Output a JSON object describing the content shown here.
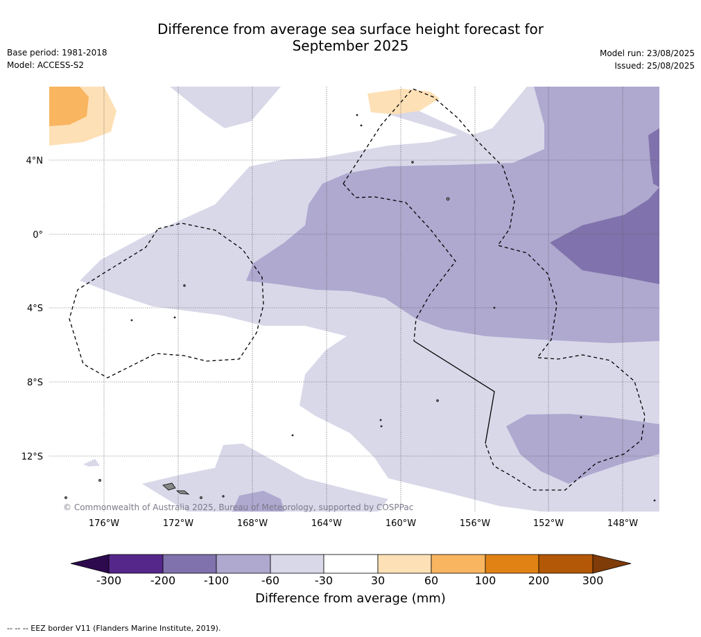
{
  "header": {
    "title_line1": "Difference from average sea surface height forecast for",
    "title_line2": "September 2025",
    "base_period": "Base period: 1981-2018",
    "model": "Model: ACCESS-S2",
    "model_run": "Model run: 23/08/2025",
    "issued": "Issued: 25/08/2025"
  },
  "map": {
    "copyright": "© Commonwealth of Australia 2025, Bureau of Meteorology, supported by COSPPac",
    "lat_labels": [
      "4°N",
      "0°",
      "4°S",
      "8°S",
      "12°S"
    ],
    "lon_labels": [
      "176°W",
      "172°W",
      "168°W",
      "164°W",
      "160°W",
      "156°W",
      "152°W",
      "148°W"
    ]
  },
  "colorbar": {
    "title": "Difference from average (mm)",
    "labels": [
      "-300",
      "-200",
      "-100",
      "-60",
      "-30",
      "30",
      "60",
      "100",
      "200",
      "300"
    ],
    "colors": [
      "#2d0a4e",
      "#55278a",
      "#8072ac",
      "#afa8cf",
      "#d8d8e9",
      "#ffffff",
      "#fee0b6",
      "#f9b560",
      "#e08214",
      "#b35806",
      "#7f3b08"
    ]
  },
  "footer": {
    "eez_note": "--  --  -- EEZ border V11 (Flanders Marine Institute, 2019)."
  }
}
